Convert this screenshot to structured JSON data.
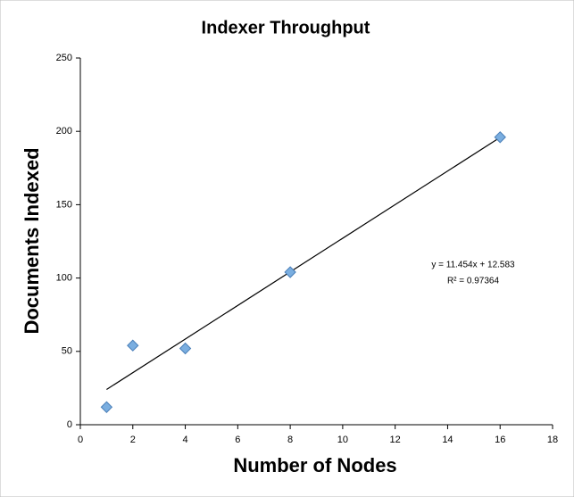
{
  "chart_data": {
    "type": "scatter",
    "title": "Indexer Throughput",
    "x_label": "Number of Nodes",
    "y_label": "Documents Indexed",
    "series": [
      {
        "name": "Documents Indexed",
        "color": "#7aaee0",
        "x": [
          1,
          2,
          4,
          8,
          16
        ],
        "values": [
          12,
          54,
          52,
          104,
          196
        ]
      }
    ],
    "trendline": {
      "slope": 11.454,
      "intercept": 12.583,
      "color": "#000000",
      "equation": "y = 11.454x + 12.583",
      "r_squared": "R² = 0.97364"
    },
    "xlim": [
      0,
      18
    ],
    "xticks": [
      0,
      2,
      4,
      6,
      8,
      10,
      12,
      14,
      16,
      18
    ],
    "ylim": [
      0,
      250
    ],
    "yticks": [
      0,
      50,
      100,
      150,
      200,
      250
    ],
    "grid": false
  }
}
